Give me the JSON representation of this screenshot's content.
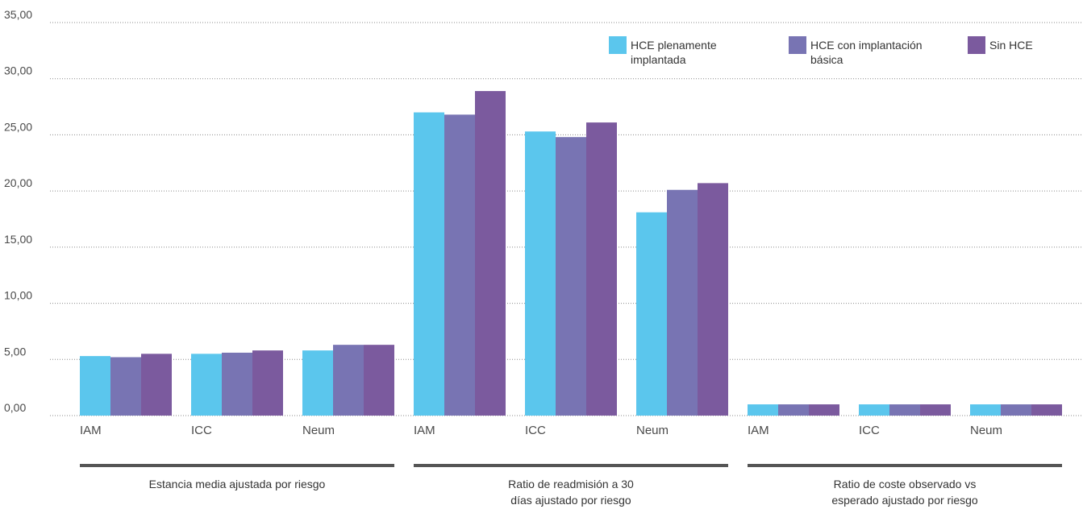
{
  "chart_data": {
    "type": "bar",
    "title": "",
    "xlabel": "",
    "ylabel": "",
    "ylim": [
      0,
      35
    ],
    "yticks": [
      "0,00",
      "5,00",
      "10,00",
      "15,00",
      "20,00",
      "25,00",
      "30,00",
      "35,00"
    ],
    "grid": true,
    "legend_position": "top-right",
    "categories": [
      "IAM",
      "ICC",
      "Neum"
    ],
    "groups": [
      {
        "label": [
          "Estancia media ajustada por riesgo"
        ],
        "series": [
          {
            "values": [
              5.3,
              5.5,
              5.8
            ]
          },
          {
            "values": [
              5.2,
              5.6,
              6.3
            ]
          },
          {
            "values": [
              5.5,
              5.8,
              6.3
            ]
          }
        ]
      },
      {
        "label": [
          "Ratio de readmisión a 30",
          "días ajustado por riesgo"
        ],
        "series": [
          {
            "values": [
              27.0,
              25.3,
              18.1
            ]
          },
          {
            "values": [
              26.8,
              24.8,
              20.1
            ]
          },
          {
            "values": [
              28.9,
              26.1,
              20.7
            ]
          }
        ]
      },
      {
        "label": [
          "Ratio de coste observado vs",
          "esperado ajustado por riesgo"
        ],
        "series": [
          {
            "values": [
              1.0,
              1.0,
              1.0
            ]
          },
          {
            "values": [
              1.0,
              1.0,
              1.0
            ]
          },
          {
            "values": [
              1.0,
              1.0,
              1.0
            ]
          }
        ]
      }
    ],
    "legend": [
      {
        "label": [
          "HCE plenamente",
          "implantada"
        ],
        "color": "#5BC6ED"
      },
      {
        "label": [
          "HCE con implantación",
          "básica"
        ],
        "color": "#7874B3"
      },
      {
        "label": [
          "Sin HCE"
        ],
        "color": "#7B5A9E"
      }
    ]
  }
}
